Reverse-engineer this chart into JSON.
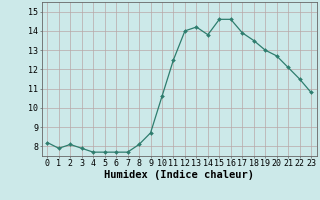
{
  "x": [
    0,
    1,
    2,
    3,
    4,
    5,
    6,
    7,
    8,
    9,
    10,
    11,
    12,
    13,
    14,
    15,
    16,
    17,
    18,
    19,
    20,
    21,
    22,
    23
  ],
  "y": [
    8.2,
    7.9,
    8.1,
    7.9,
    7.7,
    7.7,
    7.7,
    7.7,
    8.1,
    8.7,
    10.6,
    12.5,
    14.0,
    14.2,
    13.8,
    14.6,
    14.6,
    13.9,
    13.5,
    13.0,
    12.7,
    12.1,
    11.5,
    10.8
  ],
  "line_color": "#2e7d6e",
  "marker": "D",
  "markersize": 2.0,
  "linewidth": 0.9,
  "bg_color": "#cce9e9",
  "grid_color": "#b8a8a8",
  "xlabel": "Humidex (Indice chaleur)",
  "ylabel_ticks": [
    8,
    9,
    10,
    11,
    12,
    13,
    14,
    15
  ],
  "xlim": [
    -0.5,
    23.5
  ],
  "ylim": [
    7.5,
    15.5
  ],
  "xtick_labels": [
    "0",
    "1",
    "2",
    "3",
    "4",
    "5",
    "6",
    "7",
    "8",
    "9",
    "10",
    "11",
    "12",
    "13",
    "14",
    "15",
    "16",
    "17",
    "18",
    "19",
    "20",
    "21",
    "22",
    "23"
  ],
  "tick_fontsize": 6.0,
  "label_fontsize": 7.5
}
